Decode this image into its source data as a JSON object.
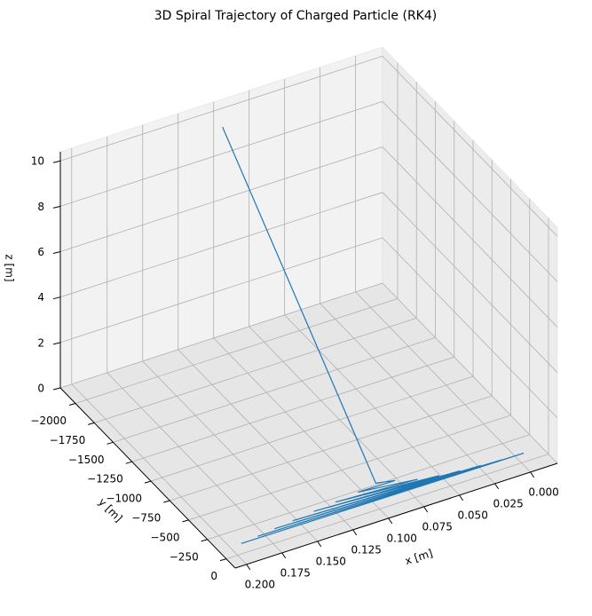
{
  "chart_data": {
    "type": "line3d",
    "title": "3D Spiral Trajectory of Charged Particle (RK4)",
    "xlabel": "x [m]",
    "ylabel": "y [m]",
    "zlabel": "z [m]",
    "series": [
      {
        "color": "#1f77b4",
        "x": [
          0.192,
          -0.006,
          0.18,
          0.01,
          0.168,
          0.025,
          0.155,
          0.04,
          0.14,
          0.055,
          0.125,
          0.07,
          0.11,
          0.085,
          0.098,
          0.1
        ],
        "y": [
          -103,
          -84,
          -110,
          -75,
          -115,
          -68,
          -118,
          -62,
          -120,
          -58,
          -115,
          -60,
          -100,
          -75,
          -88,
          -2082
        ],
        "z": [
          0,
          0.02,
          0.05,
          0.08,
          0.12,
          0.16,
          0.2,
          0.25,
          0.3,
          0.36,
          0.42,
          0.5,
          0.6,
          0.7,
          0.8,
          9.7
        ]
      }
    ],
    "xlim": [
      -0.019,
      0.208
    ],
    "ylim": [
      -2200,
      118
    ],
    "zlim": [
      0,
      10.4
    ],
    "xticks": [
      {
        "value": 0,
        "label": "0.000"
      },
      {
        "value": 0.025,
        "label": "0.025"
      },
      {
        "value": 0.05,
        "label": "0.050"
      },
      {
        "value": 0.075,
        "label": "0.075"
      },
      {
        "value": 0.1,
        "label": "0.100"
      },
      {
        "value": 0.125,
        "label": "0.125"
      },
      {
        "value": 0.15,
        "label": "0.150"
      },
      {
        "value": 0.175,
        "label": "0.175"
      },
      {
        "value": 0.2,
        "label": "0.200"
      }
    ],
    "yticks": [
      {
        "value": -2000,
        "label": "−2000"
      },
      {
        "value": -1750,
        "label": "−1750"
      },
      {
        "value": -1500,
        "label": "−1500"
      },
      {
        "value": -1250,
        "label": "−1250"
      },
      {
        "value": -1000,
        "label": "−1000"
      },
      {
        "value": -750,
        "label": "−750"
      },
      {
        "value": -500,
        "label": "−500"
      },
      {
        "value": -250,
        "label": "−250"
      },
      0
    ],
    "zticks": [
      0,
      2,
      4,
      6,
      8,
      10
    ],
    "grid": true
  }
}
